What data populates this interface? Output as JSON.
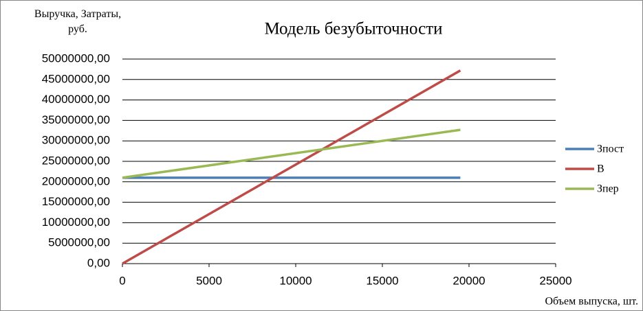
{
  "chart_data": {
    "type": "line",
    "title": "Модель безубыточности",
    "xlabel": "Объем выпуска, шт.",
    "ylabel": "Выручка, Затраты, руб.",
    "x": [
      0,
      19500
    ],
    "series": [
      {
        "name": "Зпост",
        "color": "#4a7ebb",
        "values": [
          21000000,
          21000000
        ]
      },
      {
        "name": "В",
        "color": "#be4b48",
        "values": [
          0,
          47200000
        ]
      },
      {
        "name": "Зпер",
        "color": "#98b954",
        "values": [
          21000000,
          32700000
        ]
      }
    ],
    "xlim": [
      0,
      25000
    ],
    "xticks": [
      0,
      5000,
      10000,
      15000,
      20000,
      25000
    ],
    "ylim": [
      0,
      50000000
    ],
    "yticks": [
      {
        "value": 0,
        "label": "0,00"
      },
      {
        "value": 5000000,
        "label": "5000000,00"
      },
      {
        "value": 10000000,
        "label": "10000000,00"
      },
      {
        "value": 15000000,
        "label": "15000000,00"
      },
      {
        "value": 20000000,
        "label": "20000000,00"
      },
      {
        "value": 25000000,
        "label": "25000000,00"
      },
      {
        "value": 30000000,
        "label": "30000000,00"
      },
      {
        "value": 35000000,
        "label": "35000000,00"
      },
      {
        "value": 40000000,
        "label": "40000000,00"
      },
      {
        "value": 45000000,
        "label": "45000000,00"
      },
      {
        "value": 50000000,
        "label": "50000000,00"
      }
    ],
    "grid": true,
    "legend": "right"
  }
}
